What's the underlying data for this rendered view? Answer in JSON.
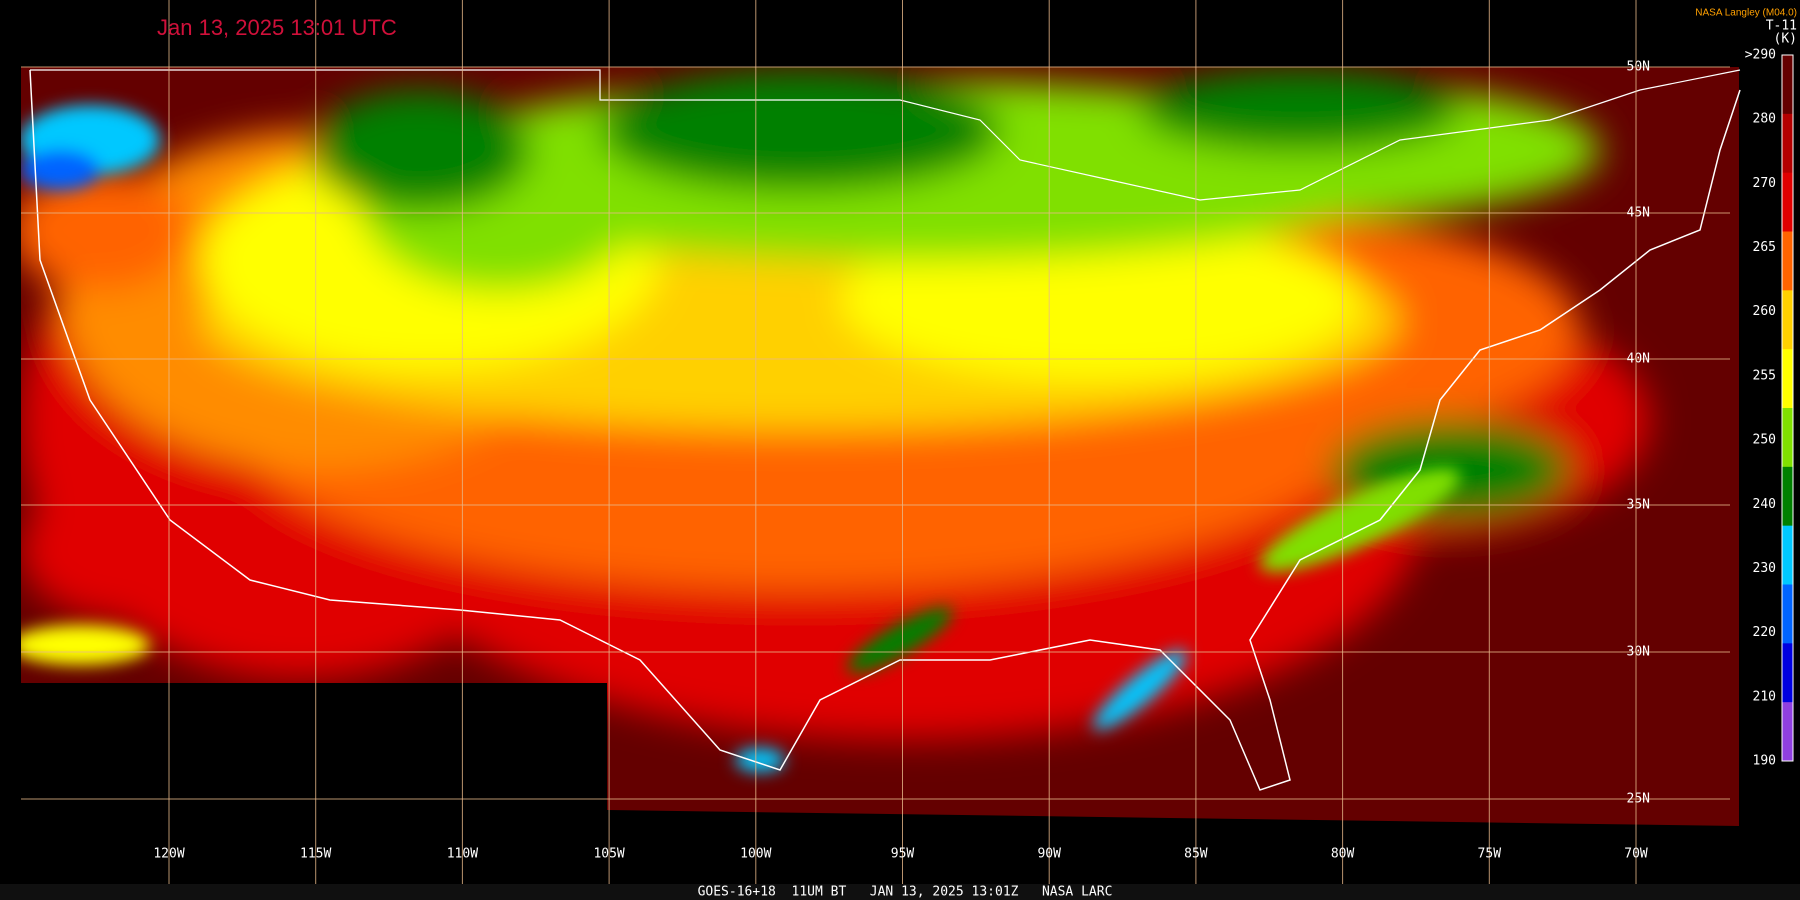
{
  "header": {
    "title": "Jan 13, 2025 13:01 UTC",
    "credit": "NASA Langley (M04.0)"
  },
  "colorbar": {
    "title": "T-11",
    "unit": "(K)",
    "labels": [
      ">290",
      "280",
      "270",
      "265",
      "260",
      "255",
      "250",
      "240",
      "230",
      "220",
      "210",
      "190"
    ]
  },
  "grid": {
    "lat_labels": [
      "50N",
      "45N",
      "40N",
      "35N",
      "30N",
      "25N"
    ],
    "lon_labels": [
      "120W",
      "115W",
      "110W",
      "105W",
      "100W",
      "95W",
      "90W",
      "85W",
      "80W",
      "75W",
      "70W"
    ]
  },
  "footer": {
    "text": "GOES-16+18  11UM BT   JAN 13, 2025 13:01Z   NASA LARC"
  }
}
